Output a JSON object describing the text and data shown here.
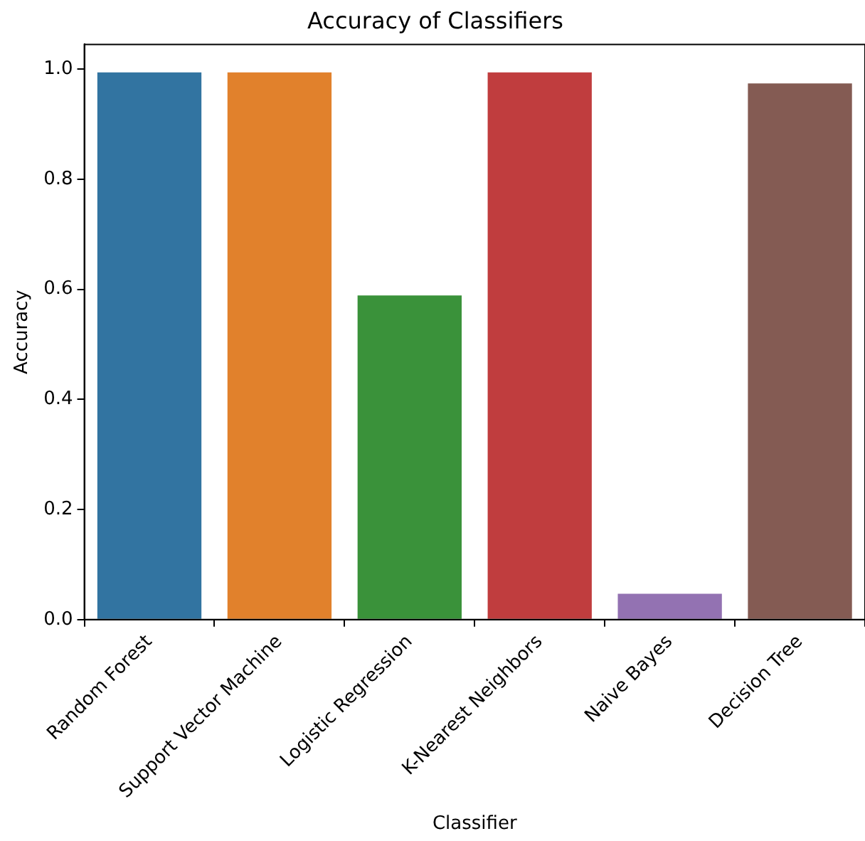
{
  "chart_data": {
    "type": "bar",
    "title": "Accuracy of Classifiers",
    "xlabel": "Classifier",
    "ylabel": "Accuracy",
    "categories": [
      "Random Forest",
      "Support Vector Machine",
      "Logistic Regression",
      "K-Nearest Neighbors",
      "Naive Bayes",
      "Decision Tree"
    ],
    "values": [
      0.994,
      0.994,
      0.589,
      0.994,
      0.047,
      0.974
    ],
    "colors": [
      "#3274a1",
      "#e1812c",
      "#3a923a",
      "#c03d3e",
      "#9372b2",
      "#845b53"
    ],
    "ylim": [
      0,
      1.045
    ],
    "yticks": [
      {
        "value": 0,
        "label": "0.0"
      },
      {
        "value": 0.2,
        "label": "0.2"
      },
      {
        "value": 0.4,
        "label": "0.4"
      },
      {
        "value": 0.6,
        "label": "0.6"
      },
      {
        "value": 0.8,
        "label": "0.8"
      },
      {
        "value": 1,
        "label": "1.0"
      }
    ]
  }
}
